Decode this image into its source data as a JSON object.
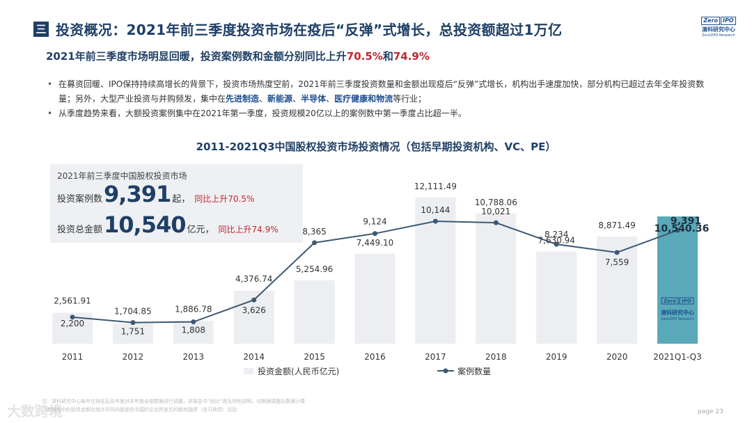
{
  "header": {
    "section_mark": "三",
    "title": "投资概况：2021年前三季度投资市场在疫后“反弹”式增长，总投资额超过1万亿",
    "logo": {
      "box_left": "Zero",
      "box_right": "IPO",
      "cn": "清科研究中心",
      "en": "Zero2IPO Research"
    }
  },
  "subtitle": {
    "text_a": "2021年前三季度市场明显回暖，投资案例数和金额分别同比上升",
    "pct_a": "70.5%",
    "text_b": "和",
    "pct_b": "74.9%"
  },
  "bullets": {
    "b1_a": "在募资回暖、IPO保持持续高增长的背景下，投资市场热度空前，2021年前三季度投资数量和金额出现疫后“反弹”式增长，机构出手速度加快，部分机构已超过去年全年投资数量；另外，大型产业投资与并购频发，集中在",
    "b1_k1": "先进制造",
    "b1_k2": "新能源",
    "b1_k3": "半导体",
    "b1_k4": "医疗健康和物流",
    "b1_sep": "、",
    "b1_end": "等行业；",
    "b2": "从季度趋势来看，大额投资案例集中在2021年第一季度，投资规模20亿以上的案例数中第一季度占比超一半。"
  },
  "summary": {
    "title": "2021年前三季度中国股权投资市场",
    "cases_label": "投资案例数",
    "cases_value": "9,391",
    "cases_unit": "起，",
    "cases_change": "同比上升70.5%",
    "amount_label": "投资总金额",
    "amount_value": "10,540",
    "amount_unit": "亿元，",
    "amount_change": "同比上升74.9%"
  },
  "chart_data": {
    "type": "bar",
    "title": "2011-2021Q3中国股权投资市场投资情况（包括早期投资机构、VC、PE）",
    "categories": [
      "2011",
      "2012",
      "2013",
      "2014",
      "2015",
      "2016",
      "2017",
      "2018",
      "2019",
      "2020",
      "2021Q1-Q3"
    ],
    "series": [
      {
        "name": "投资金额(人民币亿元)",
        "kind": "bar",
        "values": [
          2561.91,
          1704.85,
          1886.78,
          4376.74,
          5254.96,
          7449.1,
          12111.49,
          10788.06,
          7630.94,
          8871.49,
          10540.36
        ],
        "labels": [
          "2,561.91",
          "1,704.85",
          "1,886.78",
          "4,376.74",
          "5,254.96",
          "7,449.10",
          "12,111.49",
          "10,788.06",
          "7,630.94",
          "8,871.49",
          "10,540.36"
        ]
      },
      {
        "name": "案例数量",
        "kind": "line",
        "values": [
          2200,
          1751,
          1808,
          3626,
          8365,
          9124,
          10144,
          10021,
          8234,
          7559,
          9391
        ],
        "labels": [
          "2,200",
          "1,751",
          "1,808",
          "3,626",
          "8,365",
          "9,124",
          "10,144",
          "10,021",
          "8,234",
          "7,559",
          "9,391"
        ]
      }
    ],
    "ylim": [
      0,
      13000
    ],
    "grid": false,
    "legend": "bottom",
    "colors": {
      "bar": "#eceef1",
      "bar_highlight": "#5aa9b8",
      "line": "#3d5873",
      "label": "#333333",
      "highlight_label": "#1f2f40"
    }
  },
  "footer": {
    "note1": "注：清科研究中心每年在排名后及年底对本年度全部数据进行调整，本报告中“同比”将无特别说明，均根据调整后数据计算",
    "note2": "（本报告中的投资金额在统计时间内是部在中国的企业所发生的股权融资（含可转债）活动",
    "watermark": "大数跨境",
    "page": "page  23"
  }
}
